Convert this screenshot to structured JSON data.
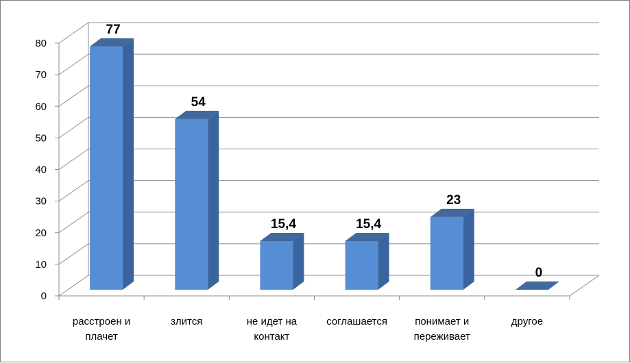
{
  "chart_data": {
    "type": "bar",
    "title": "",
    "xlabel": "",
    "ylabel": "",
    "categories": [
      [
        "расстроен и",
        "плачет"
      ],
      [
        "злится"
      ],
      [
        "не идет на",
        "контакт"
      ],
      [
        "соглашается"
      ],
      [
        "понимает и",
        "переживает"
      ],
      [
        "другое"
      ]
    ],
    "values": [
      77,
      54,
      15.4,
      15.4,
      23,
      0
    ],
    "data_labels": [
      "77",
      "54",
      "15,4",
      "15,4",
      "23",
      "0"
    ],
    "yticks": [
      0,
      10,
      20,
      30,
      40,
      50,
      60,
      70,
      80
    ],
    "ylim": [
      0,
      80
    ],
    "grid": true,
    "legend": "none",
    "bar_color": "#558ed5",
    "bar_side_color": "#3a649d",
    "bar_top_color": "#41699c"
  }
}
